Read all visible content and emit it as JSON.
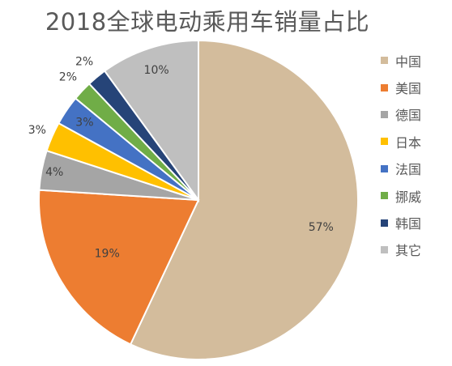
{
  "chart_data": {
    "type": "pie",
    "title": "2018全球电动乘用车销量占比",
    "categories": [
      "中国",
      "美国",
      "德国",
      "日本",
      "法国",
      "挪威",
      "韩国",
      "其它"
    ],
    "values": [
      57,
      19,
      4,
      3,
      3,
      2,
      2,
      10
    ],
    "data_labels": [
      "57%",
      "19%",
      "4%",
      "3%",
      "3%",
      "2%",
      "2%",
      "10%"
    ],
    "colors": [
      "#D3BC9C",
      "#ED7D31",
      "#A5A5A5",
      "#FFC000",
      "#4472C4",
      "#70AD47",
      "#264478",
      "#BFBFBF"
    ],
    "start": "12 o'clock",
    "direction": "clockwise",
    "legend_position": "right"
  }
}
